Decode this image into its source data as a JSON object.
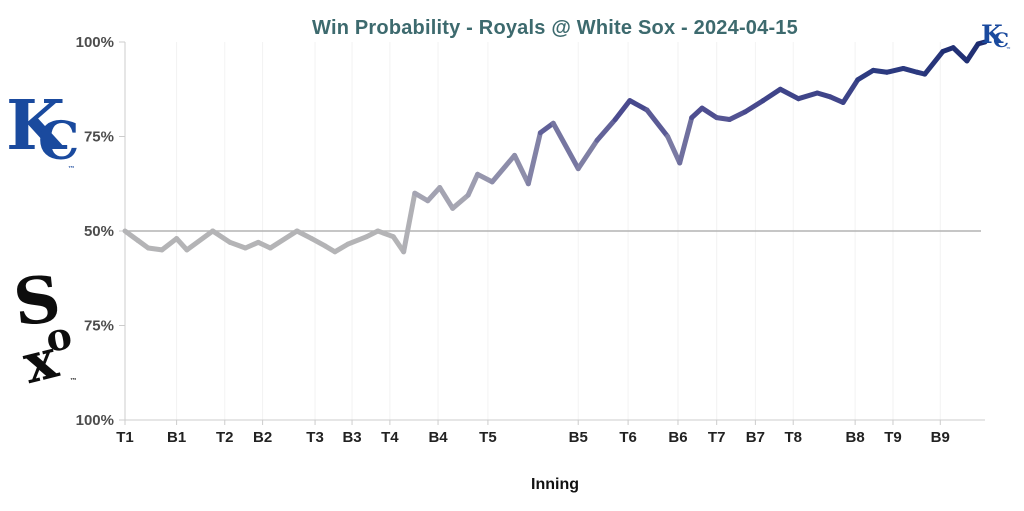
{
  "header": {
    "title": "Win Probability - Royals @ White Sox - 2024-04-15",
    "title_color": "#3d6a6e"
  },
  "teams": {
    "away": {
      "name": "Royals",
      "letters": [
        "K",
        "C"
      ],
      "tm": "™",
      "color": "#1a4a9e"
    },
    "home": {
      "name": "White Sox",
      "letters": [
        "S",
        "o",
        "x"
      ],
      "tm": "™",
      "color": "#0d0d0d"
    }
  },
  "chart_data": {
    "type": "line",
    "title": "Win Probability - Royals @ White Sox - 2024-04-15",
    "xlabel": "Inning",
    "ylabel": "",
    "x_axis": {
      "ticks": [
        {
          "label": "T1",
          "f": 0.0
        },
        {
          "label": "B1",
          "f": 0.06
        },
        {
          "label": "T2",
          "f": 0.116
        },
        {
          "label": "B2",
          "f": 0.16
        },
        {
          "label": "T3",
          "f": 0.221
        },
        {
          "label": "B3",
          "f": 0.264
        },
        {
          "label": "T4",
          "f": 0.308
        },
        {
          "label": "B4",
          "f": 0.364
        },
        {
          "label": "T5",
          "f": 0.422
        },
        {
          "label": "B5",
          "f": 0.527
        },
        {
          "label": "T6",
          "f": 0.585
        },
        {
          "label": "B6",
          "f": 0.643
        },
        {
          "label": "T7",
          "f": 0.688
        },
        {
          "label": "B7",
          "f": 0.733
        },
        {
          "label": "T8",
          "f": 0.777
        },
        {
          "label": "B8",
          "f": 0.849
        },
        {
          "label": "T9",
          "f": 0.893
        },
        {
          "label": "B9",
          "f": 0.948
        }
      ]
    },
    "y_axis": {
      "ticks": [
        {
          "label": "100%",
          "wp": 100
        },
        {
          "label": "75%",
          "wp": 75
        },
        {
          "label": "50%",
          "wp": 50
        },
        {
          "label": "75%",
          "wp": 25
        },
        {
          "label": "100%",
          "wp": 0
        }
      ]
    },
    "grid": {
      "vertical_gridlines": true,
      "horizontal_midline_at_50": true
    },
    "point_format": [
      "x_fraction_of_game",
      "kc_win_probability_pct"
    ],
    "series": [
      {
        "name": "KC win probability",
        "points": [
          [
            0.0,
            50
          ],
          [
            0.015,
            47.5
          ],
          [
            0.027,
            45.5
          ],
          [
            0.043,
            45
          ],
          [
            0.06,
            48
          ],
          [
            0.072,
            45
          ],
          [
            0.102,
            50
          ],
          [
            0.122,
            47
          ],
          [
            0.14,
            45.5
          ],
          [
            0.155,
            47
          ],
          [
            0.169,
            45.5
          ],
          [
            0.2,
            50
          ],
          [
            0.217,
            48
          ],
          [
            0.233,
            46
          ],
          [
            0.244,
            44.5
          ],
          [
            0.259,
            46.5
          ],
          [
            0.281,
            48.5
          ],
          [
            0.294,
            50
          ],
          [
            0.312,
            48.5
          ],
          [
            0.324,
            44.5
          ],
          [
            0.337,
            60
          ],
          [
            0.352,
            58
          ],
          [
            0.366,
            61.5
          ],
          [
            0.381,
            56
          ],
          [
            0.399,
            59.5
          ],
          [
            0.41,
            65
          ],
          [
            0.427,
            63
          ],
          [
            0.453,
            70
          ],
          [
            0.469,
            62.5
          ],
          [
            0.483,
            76
          ],
          [
            0.498,
            78.5
          ],
          [
            0.527,
            66.5
          ],
          [
            0.549,
            74
          ],
          [
            0.57,
            79.5
          ],
          [
            0.587,
            84.5
          ],
          [
            0.607,
            82
          ],
          [
            0.631,
            75
          ],
          [
            0.645,
            68
          ],
          [
            0.659,
            80
          ],
          [
            0.671,
            82.5
          ],
          [
            0.688,
            80
          ],
          [
            0.703,
            79.5
          ],
          [
            0.721,
            81.5
          ],
          [
            0.742,
            84.5
          ],
          [
            0.762,
            87.5
          ],
          [
            0.783,
            85
          ],
          [
            0.805,
            86.5
          ],
          [
            0.82,
            85.5
          ],
          [
            0.835,
            84
          ],
          [
            0.852,
            90
          ],
          [
            0.87,
            92.5
          ],
          [
            0.886,
            92
          ],
          [
            0.905,
            93
          ],
          [
            0.921,
            92
          ],
          [
            0.93,
            91.5
          ],
          [
            0.951,
            97.5
          ],
          [
            0.963,
            98.5
          ],
          [
            0.979,
            95
          ],
          [
            0.992,
            99.5
          ],
          [
            1.0,
            100
          ]
        ]
      }
    ],
    "color_scale": {
      "stops": [
        [
          50,
          "#b4b4b6"
        ],
        [
          62,
          "#9e9eb0"
        ],
        [
          72,
          "#7878a2"
        ],
        [
          82,
          "#4b4b8f"
        ],
        [
          92,
          "#2c3a80"
        ],
        [
          100,
          "#1b2a6e"
        ]
      ]
    },
    "colors": {
      "grid": "#f2f2f2",
      "axis": "#cccccc",
      "midline": "#b3b3b3",
      "y_tick_label": "#4d4d4d",
      "x_tick_label": "#222222"
    },
    "end_annotation": {
      "letters": [
        "K",
        "C"
      ],
      "tm": "™",
      "color": "#1a4a9e"
    }
  }
}
